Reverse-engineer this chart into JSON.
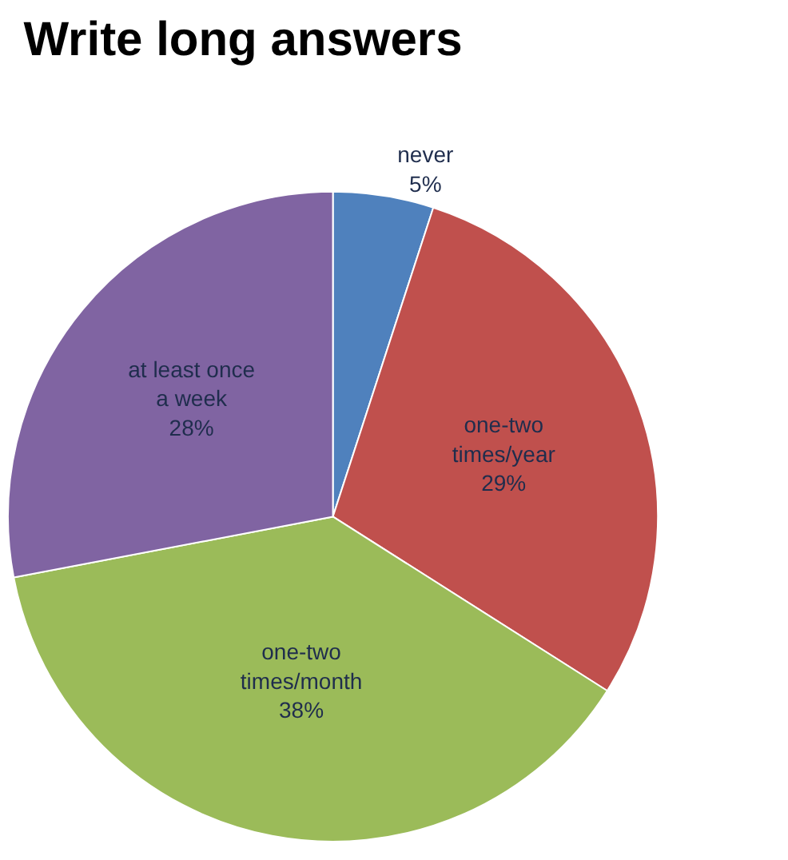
{
  "chart_data": {
    "type": "pie",
    "title": "Write long answers",
    "categories": [
      "never",
      "one-two times/year",
      "one-two times/month",
      "at least once a week"
    ],
    "values": [
      5,
      29,
      38,
      28
    ],
    "value_labels": [
      "5%",
      "29%",
      "38%",
      "28%"
    ],
    "colors": [
      "#4f81bd",
      "#c0504d",
      "#9bbb59",
      "#8064a2"
    ],
    "legend": false
  }
}
